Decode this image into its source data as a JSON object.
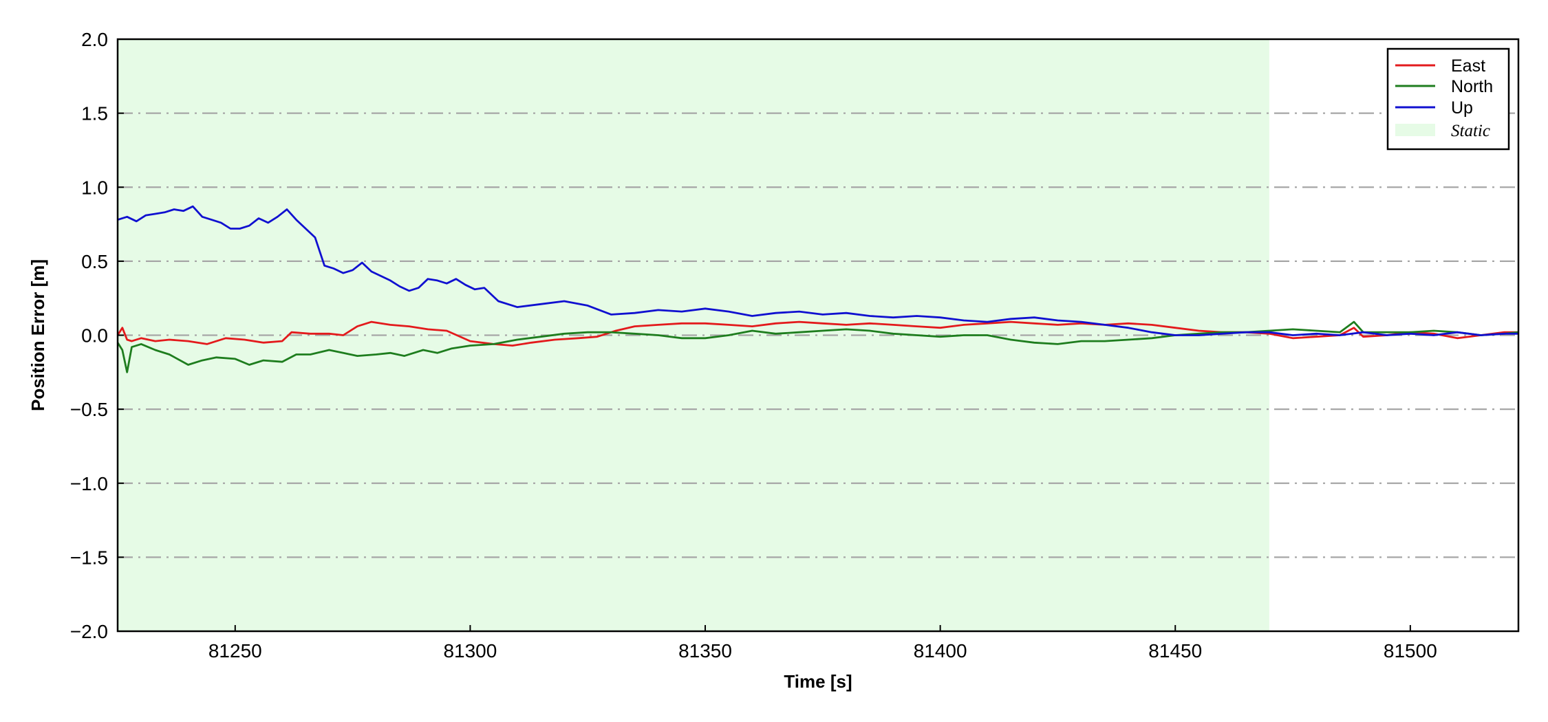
{
  "chart_data": {
    "type": "line",
    "xlabel": "Time [s]",
    "ylabel": "Position Error [m]",
    "xlim": [
      81225,
      81523
    ],
    "ylim": [
      -2.0,
      2.0
    ],
    "x_ticks": [
      "81250",
      "81300",
      "81350",
      "81400",
      "81450",
      "81500"
    ],
    "x_tick_values": [
      81250,
      81300,
      81350,
      81400,
      81450,
      81500
    ],
    "y_ticks": [
      "2.0",
      "1.5",
      "1.0",
      "0.5",
      "0.0",
      "−0.5",
      "−1.0",
      "−1.5",
      "−2.0"
    ],
    "y_tick_values": [
      2.0,
      1.5,
      1.0,
      0.5,
      0.0,
      -0.5,
      -1.0,
      -1.5,
      -2.0
    ],
    "grid": "horizontal dash-dot",
    "legend_position": "top-right",
    "shaded_region": {
      "label": "Static",
      "x_start": 81225,
      "x_end": 81470,
      "color": "#e6fbe6"
    },
    "series": [
      {
        "name": "East",
        "color": "#e31a1c",
        "x": [
          81225,
          81226,
          81227,
          81228,
          81230,
          81233,
          81236,
          81240,
          81244,
          81248,
          81252,
          81256,
          81260,
          81262,
          81266,
          81270,
          81273,
          81276,
          81279,
          81283,
          81287,
          81291,
          81295,
          81300,
          81305,
          81309,
          81313,
          81318,
          81323,
          81327,
          81331,
          81335,
          81340,
          81345,
          81350,
          81355,
          81360,
          81365,
          81370,
          81375,
          81380,
          81385,
          81390,
          81395,
          81400,
          81405,
          81410,
          81415,
          81420,
          81425,
          81430,
          81435,
          81440,
          81445,
          81450,
          81455,
          81460,
          81465,
          81470,
          81475,
          81480,
          81485,
          81488,
          81490,
          81495,
          81500,
          81505,
          81510,
          81515,
          81520,
          81523
        ],
        "values": [
          0.0,
          0.05,
          -0.03,
          -0.04,
          -0.02,
          -0.04,
          -0.03,
          -0.04,
          -0.06,
          -0.02,
          -0.03,
          -0.05,
          -0.04,
          0.02,
          0.01,
          0.01,
          0.0,
          0.06,
          0.09,
          0.07,
          0.06,
          0.04,
          0.03,
          -0.04,
          -0.06,
          -0.07,
          -0.05,
          -0.03,
          -0.02,
          -0.01,
          0.03,
          0.06,
          0.07,
          0.08,
          0.08,
          0.07,
          0.06,
          0.08,
          0.09,
          0.08,
          0.07,
          0.08,
          0.07,
          0.06,
          0.05,
          0.07,
          0.08,
          0.09,
          0.08,
          0.07,
          0.08,
          0.07,
          0.08,
          0.07,
          0.05,
          0.03,
          0.02,
          0.02,
          0.01,
          -0.02,
          -0.01,
          0.0,
          0.05,
          -0.01,
          0.0,
          0.02,
          0.01,
          -0.02,
          0.0,
          0.02,
          0.02
        ]
      },
      {
        "name": "North",
        "color": "#1e7d1e",
        "x": [
          81225,
          81226,
          81227,
          81228,
          81230,
          81233,
          81236,
          81240,
          81243,
          81246,
          81250,
          81253,
          81256,
          81260,
          81263,
          81266,
          81270,
          81273,
          81276,
          81280,
          81283,
          81286,
          81290,
          81293,
          81296,
          81300,
          81305,
          81310,
          81315,
          81320,
          81325,
          81330,
          81335,
          81340,
          81345,
          81350,
          81355,
          81360,
          81365,
          81370,
          81375,
          81380,
          81385,
          81390,
          81395,
          81400,
          81405,
          81410,
          81415,
          81420,
          81425,
          81430,
          81435,
          81440,
          81445,
          81450,
          81455,
          81460,
          81465,
          81470,
          81475,
          81480,
          81485,
          81488,
          81490,
          81495,
          81500,
          81505,
          81510,
          81515,
          81520,
          81523
        ],
        "values": [
          -0.05,
          -0.1,
          -0.25,
          -0.08,
          -0.06,
          -0.1,
          -0.13,
          -0.2,
          -0.17,
          -0.15,
          -0.16,
          -0.2,
          -0.17,
          -0.18,
          -0.13,
          -0.13,
          -0.1,
          -0.12,
          -0.14,
          -0.13,
          -0.12,
          -0.14,
          -0.1,
          -0.12,
          -0.09,
          -0.07,
          -0.06,
          -0.03,
          -0.01,
          0.01,
          0.02,
          0.02,
          0.01,
          0.0,
          -0.02,
          -0.02,
          0.0,
          0.03,
          0.01,
          0.02,
          0.03,
          0.04,
          0.03,
          0.01,
          0.0,
          -0.01,
          0.0,
          0.0,
          -0.03,
          -0.05,
          -0.06,
          -0.04,
          -0.04,
          -0.03,
          -0.02,
          0.0,
          0.01,
          0.02,
          0.02,
          0.03,
          0.04,
          0.03,
          0.02,
          0.09,
          0.02,
          0.02,
          0.02,
          0.03,
          0.02,
          0.0,
          0.01,
          0.02
        ]
      },
      {
        "name": "Up",
        "color": "#1010d0",
        "x": [
          81225,
          81227,
          81229,
          81231,
          81233,
          81235,
          81237,
          81239,
          81241,
          81243,
          81245,
          81247,
          81249,
          81251,
          81253,
          81255,
          81257,
          81259,
          81261,
          81263,
          81265,
          81267,
          81269,
          81271,
          81273,
          81275,
          81277,
          81279,
          81281,
          81283,
          81285,
          81287,
          81289,
          81291,
          81293,
          81295,
          81297,
          81299,
          81301,
          81303,
          81306,
          81310,
          81315,
          81320,
          81325,
          81330,
          81335,
          81340,
          81345,
          81350,
          81355,
          81360,
          81365,
          81370,
          81375,
          81380,
          81385,
          81390,
          81395,
          81400,
          81405,
          81410,
          81415,
          81420,
          81425,
          81430,
          81435,
          81440,
          81445,
          81450,
          81455,
          81460,
          81465,
          81470,
          81475,
          81480,
          81485,
          81490,
          81495,
          81500,
          81505,
          81510,
          81515,
          81520,
          81523
        ],
        "values": [
          0.78,
          0.8,
          0.77,
          0.81,
          0.82,
          0.83,
          0.85,
          0.84,
          0.87,
          0.8,
          0.78,
          0.76,
          0.72,
          0.72,
          0.74,
          0.79,
          0.76,
          0.8,
          0.85,
          0.78,
          0.72,
          0.66,
          0.47,
          0.45,
          0.42,
          0.44,
          0.49,
          0.43,
          0.4,
          0.37,
          0.33,
          0.3,
          0.32,
          0.38,
          0.37,
          0.35,
          0.38,
          0.34,
          0.31,
          0.32,
          0.23,
          0.19,
          0.21,
          0.23,
          0.2,
          0.14,
          0.15,
          0.17,
          0.16,
          0.18,
          0.16,
          0.13,
          0.15,
          0.16,
          0.14,
          0.15,
          0.13,
          0.12,
          0.13,
          0.12,
          0.1,
          0.09,
          0.11,
          0.12,
          0.1,
          0.09,
          0.07,
          0.05,
          0.02,
          0.0,
          0.0,
          0.01,
          0.02,
          0.02,
          0.0,
          0.01,
          0.0,
          0.02,
          0.0,
          0.01,
          0.0,
          0.02,
          0.0,
          0.01,
          0.01
        ]
      }
    ]
  }
}
